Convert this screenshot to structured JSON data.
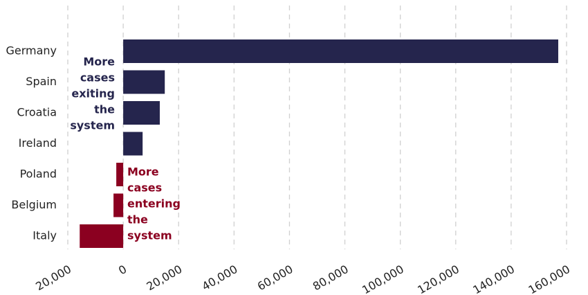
{
  "chart_data": {
    "type": "bar",
    "orientation": "horizontal",
    "categories": [
      "Germany",
      "Spain",
      "Croatia",
      "Ireland",
      "Poland",
      "Belgium",
      "Italy"
    ],
    "values": [
      157000,
      15000,
      13200,
      7000,
      -2500,
      -3500,
      -15700
    ],
    "colors": [
      "#25254d",
      "#25254d",
      "#25254d",
      "#25254d",
      "#8b0020",
      "#8b0020",
      "#8b0020"
    ],
    "xlim": [
      -20000,
      160000
    ],
    "xticks": [
      {
        "value": -20000,
        "label": "20,000"
      },
      {
        "value": 0,
        "label": "0"
      },
      {
        "value": 20000,
        "label": "20,000"
      },
      {
        "value": 40000,
        "label": "40,000"
      },
      {
        "value": 60000,
        "label": "60,000"
      },
      {
        "value": 80000,
        "label": "80,000"
      },
      {
        "value": 100000,
        "label": "100,000"
      },
      {
        "value": 120000,
        "label": "120,000"
      },
      {
        "value": 140000,
        "label": "140,000"
      },
      {
        "value": 160000,
        "label": "160,000"
      }
    ],
    "grid": true,
    "annotations": [
      {
        "lines": [
          "More",
          "cases",
          "exiting",
          "the",
          "system"
        ],
        "color": "#25254d"
      },
      {
        "lines": [
          "More",
          "cases",
          "entering",
          "the",
          "system"
        ],
        "color": "#8b0020"
      }
    ]
  }
}
